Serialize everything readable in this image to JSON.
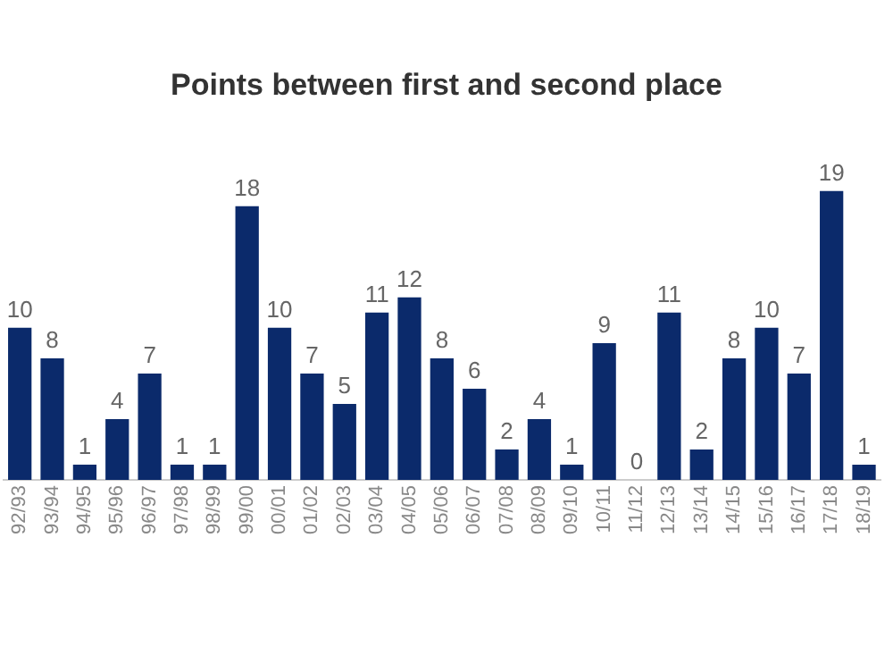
{
  "chart_data": {
    "type": "bar",
    "title": "Points between first and second place",
    "categories": [
      "92/93",
      "93/94",
      "94/95",
      "95/96",
      "96/97",
      "97/98",
      "98/99",
      "99/00",
      "00/01",
      "01/02",
      "02/03",
      "03/04",
      "04/05",
      "05/06",
      "06/07",
      "07/08",
      "08/09",
      "09/10",
      "10/11",
      "11/12",
      "12/13",
      "13/14",
      "14/15",
      "15/16",
      "16/17",
      "17/18",
      "18/19"
    ],
    "values": [
      10,
      8,
      1,
      4,
      7,
      1,
      1,
      18,
      10,
      7,
      5,
      11,
      12,
      8,
      6,
      2,
      4,
      1,
      9,
      0,
      11,
      2,
      8,
      10,
      7,
      19,
      1
    ],
    "color": "#0b2a6b",
    "data_labels": true,
    "grid": false,
    "legend": false
  }
}
